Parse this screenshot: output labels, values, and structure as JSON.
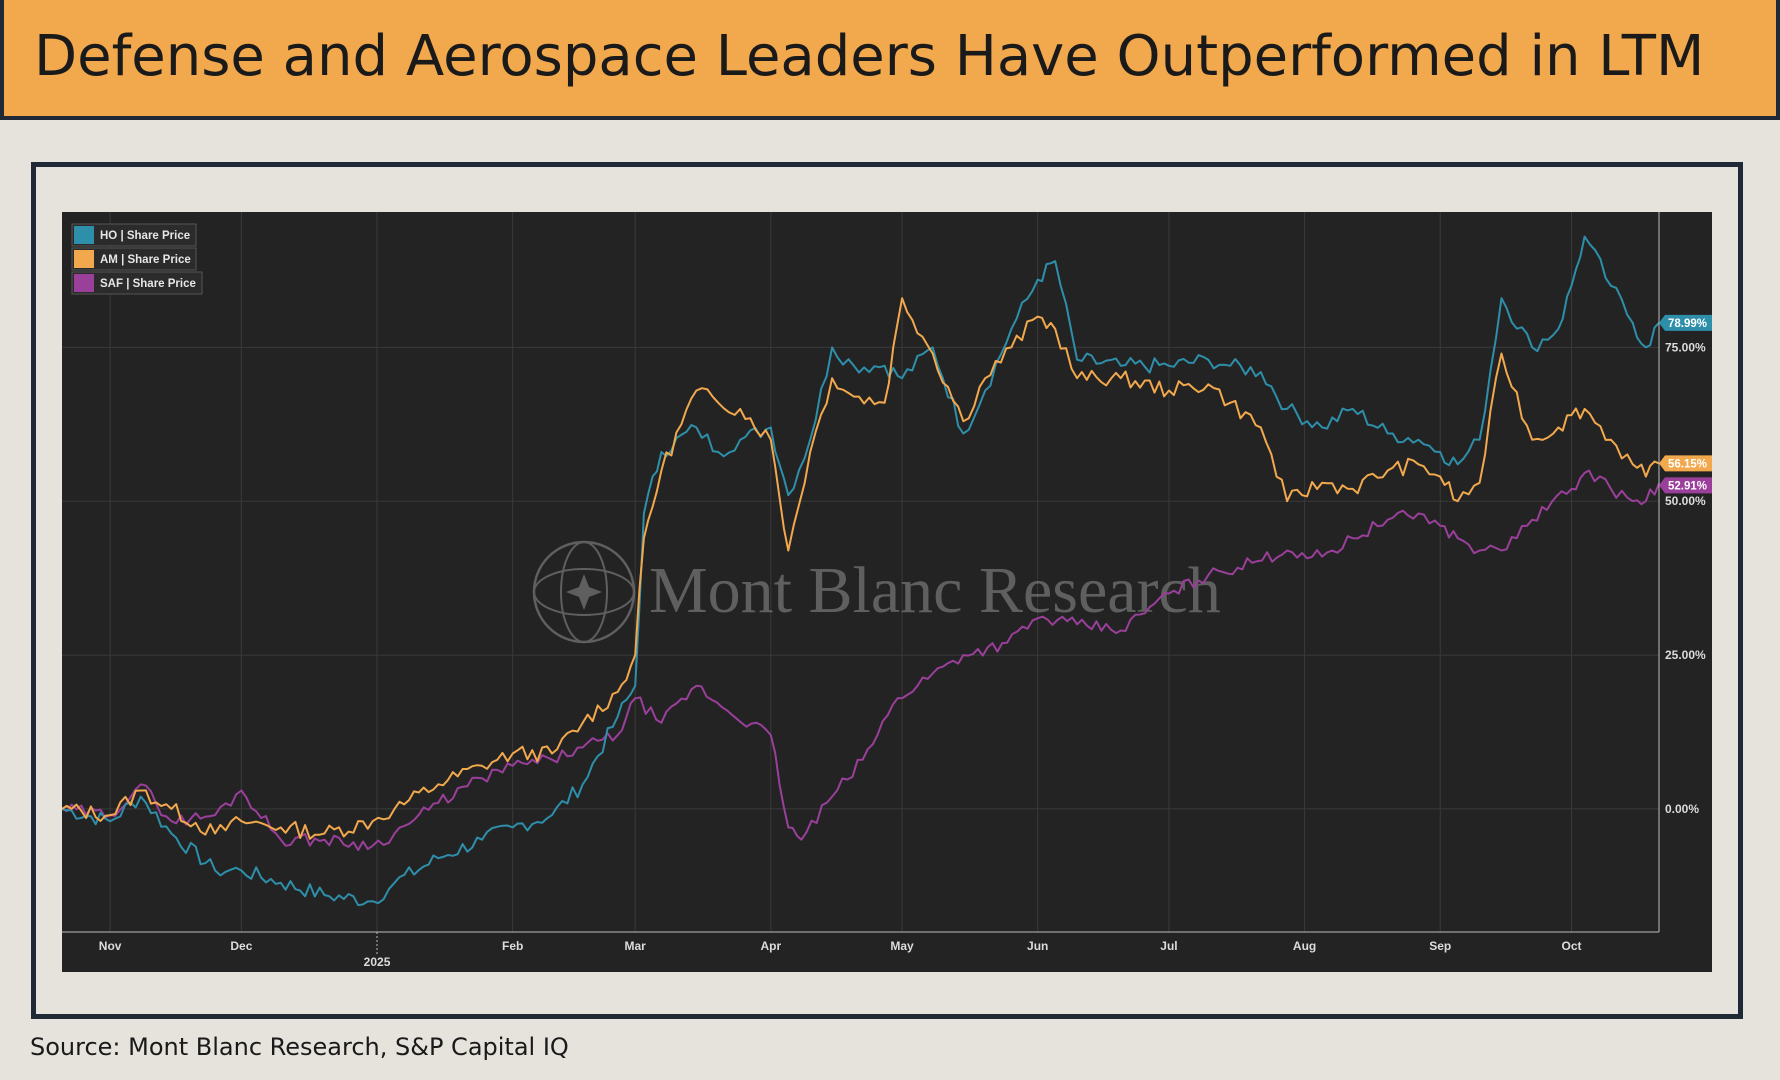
{
  "page": {
    "title": "Defense and Aerospace Leaders Have Outperformed in LTM",
    "source": "Source: Mont Blanc Research, S&P Capital IQ",
    "watermark": "Mont Blanc Research"
  },
  "colors": {
    "HO": "#2e8faa",
    "AM": "#f2a84d",
    "SAF": "#9a3f9a",
    "plot_bg": "#232323",
    "grid": "#3a3a3a",
    "text": "#e6e6e6"
  },
  "chart_data": {
    "type": "line",
    "title": "",
    "xlabel": "",
    "ylabel": "",
    "ylim": [
      -20,
      97
    ],
    "x_ticks": [
      "Nov",
      "Dec",
      "2025",
      "Feb",
      "Mar",
      "Apr",
      "May",
      "Jun",
      "Jul",
      "Aug",
      "Sep",
      "Oct"
    ],
    "y_ticks": [
      "0.00%",
      "25.00%",
      "50.00%",
      "75.00%"
    ],
    "y_tick_values": [
      0,
      25,
      50,
      75
    ],
    "legend_position": "top-left",
    "x_range": [
      "2024-10-21",
      "2025-10-21"
    ],
    "series": [
      {
        "name": "HO | Share Price",
        "end_label": "78.99%",
        "dates": [
          "2024-10-21",
          "2024-11-01",
          "2024-11-08",
          "2024-11-15",
          "2024-11-25",
          "2024-12-01",
          "2024-12-10",
          "2024-12-20",
          "2024-12-31",
          "2025-01-05",
          "2025-01-15",
          "2025-01-25",
          "2025-02-01",
          "2025-02-10",
          "2025-02-17",
          "2025-02-25",
          "2025-03-01",
          "2025-03-03",
          "2025-03-07",
          "2025-03-15",
          "2025-03-20",
          "2025-03-25",
          "2025-04-01",
          "2025-04-05",
          "2025-04-10",
          "2025-04-15",
          "2025-04-20",
          "2025-04-27",
          "2025-05-01",
          "2025-05-08",
          "2025-05-15",
          "2025-05-20",
          "2025-05-26",
          "2025-06-01",
          "2025-06-05",
          "2025-06-10",
          "2025-06-20",
          "2025-07-01",
          "2025-07-10",
          "2025-07-15",
          "2025-07-22",
          "2025-07-28",
          "2025-08-05",
          "2025-08-12",
          "2025-08-20",
          "2025-08-27",
          "2025-09-01",
          "2025-09-05",
          "2025-09-10",
          "2025-09-15",
          "2025-09-22",
          "2025-09-28",
          "2025-10-01",
          "2025-10-04",
          "2025-10-10",
          "2025-10-15",
          "2025-10-18",
          "2025-10-21"
        ],
        "values": [
          0,
          -2,
          2,
          -4,
          -10,
          -10,
          -12,
          -14,
          -15,
          -12,
          -8,
          -5,
          -3,
          -1,
          4,
          15,
          20,
          48,
          58,
          62,
          58,
          60,
          62,
          51,
          60,
          75,
          72,
          72,
          70,
          75,
          61,
          68,
          78,
          86,
          89,
          73,
          72,
          72,
          73,
          72,
          71,
          65,
          62,
          65,
          61,
          60,
          58,
          56,
          60,
          83,
          75,
          78,
          85,
          93,
          85,
          79,
          75,
          78.99
        ]
      },
      {
        "name": "AM | Share Price",
        "end_label": "56.15%",
        "dates": [
          "2024-10-21",
          "2024-11-01",
          "2024-11-08",
          "2024-11-15",
          "2024-11-25",
          "2024-12-01",
          "2024-12-10",
          "2024-12-20",
          "2024-12-31",
          "2025-01-05",
          "2025-01-15",
          "2025-01-25",
          "2025-02-01",
          "2025-02-10",
          "2025-02-17",
          "2025-02-25",
          "2025-03-01",
          "2025-03-03",
          "2025-03-07",
          "2025-03-15",
          "2025-03-20",
          "2025-03-25",
          "2025-04-01",
          "2025-04-05",
          "2025-04-10",
          "2025-04-15",
          "2025-04-20",
          "2025-04-27",
          "2025-05-01",
          "2025-05-08",
          "2025-05-15",
          "2025-05-20",
          "2025-05-26",
          "2025-06-01",
          "2025-06-05",
          "2025-06-10",
          "2025-06-20",
          "2025-07-01",
          "2025-07-10",
          "2025-07-15",
          "2025-07-22",
          "2025-07-28",
          "2025-08-05",
          "2025-08-12",
          "2025-08-20",
          "2025-08-27",
          "2025-09-01",
          "2025-09-05",
          "2025-09-10",
          "2025-09-15",
          "2025-09-22",
          "2025-09-28",
          "2025-10-01",
          "2025-10-04",
          "2025-10-10",
          "2025-10-15",
          "2025-10-18",
          "2025-10-21"
        ],
        "values": [
          0,
          -1,
          3,
          0,
          -4,
          -2,
          -3,
          -4,
          -2,
          0,
          4,
          7,
          9,
          9,
          14,
          19,
          25,
          44,
          55,
          68,
          66,
          65,
          60,
          42,
          58,
          70,
          67,
          66,
          83,
          74,
          63,
          70,
          75,
          80,
          78,
          70,
          70,
          68,
          69,
          66,
          62,
          50,
          53,
          52,
          55,
          56,
          54,
          50,
          53,
          74,
          60,
          62,
          64,
          65,
          60,
          56,
          54,
          56.15
        ]
      },
      {
        "name": "SAF | Share Price",
        "end_label": "52.91%",
        "dates": [
          "2024-10-21",
          "2024-11-01",
          "2024-11-08",
          "2024-11-15",
          "2024-11-25",
          "2024-12-01",
          "2024-12-10",
          "2024-12-20",
          "2024-12-31",
          "2025-01-05",
          "2025-01-15",
          "2025-01-25",
          "2025-02-01",
          "2025-02-10",
          "2025-02-17",
          "2025-02-25",
          "2025-03-01",
          "2025-03-07",
          "2025-03-15",
          "2025-03-22",
          "2025-04-01",
          "2025-04-05",
          "2025-04-08",
          "2025-04-15",
          "2025-04-22",
          "2025-04-30",
          "2025-05-08",
          "2025-05-15",
          "2025-05-25",
          "2025-06-01",
          "2025-06-10",
          "2025-06-20",
          "2025-07-01",
          "2025-07-10",
          "2025-07-20",
          "2025-07-28",
          "2025-08-05",
          "2025-08-12",
          "2025-08-20",
          "2025-08-27",
          "2025-09-01",
          "2025-09-05",
          "2025-09-10",
          "2025-09-15",
          "2025-09-22",
          "2025-10-01",
          "2025-10-05",
          "2025-10-10",
          "2025-10-15",
          "2025-10-18",
          "2025-10-21"
        ],
        "values": [
          0,
          -1,
          4,
          -2,
          -1,
          3,
          -5,
          -5,
          -6,
          -4,
          1,
          5,
          7,
          8,
          10,
          12,
          18,
          14,
          20,
          16,
          12,
          -3,
          -5,
          2,
          8,
          18,
          22,
          25,
          27,
          31,
          30,
          29,
          35,
          38,
          40,
          42,
          41,
          44,
          47,
          48,
          46,
          44,
          42,
          42,
          47,
          52,
          55,
          52,
          50,
          50,
          52.91
        ]
      }
    ]
  }
}
